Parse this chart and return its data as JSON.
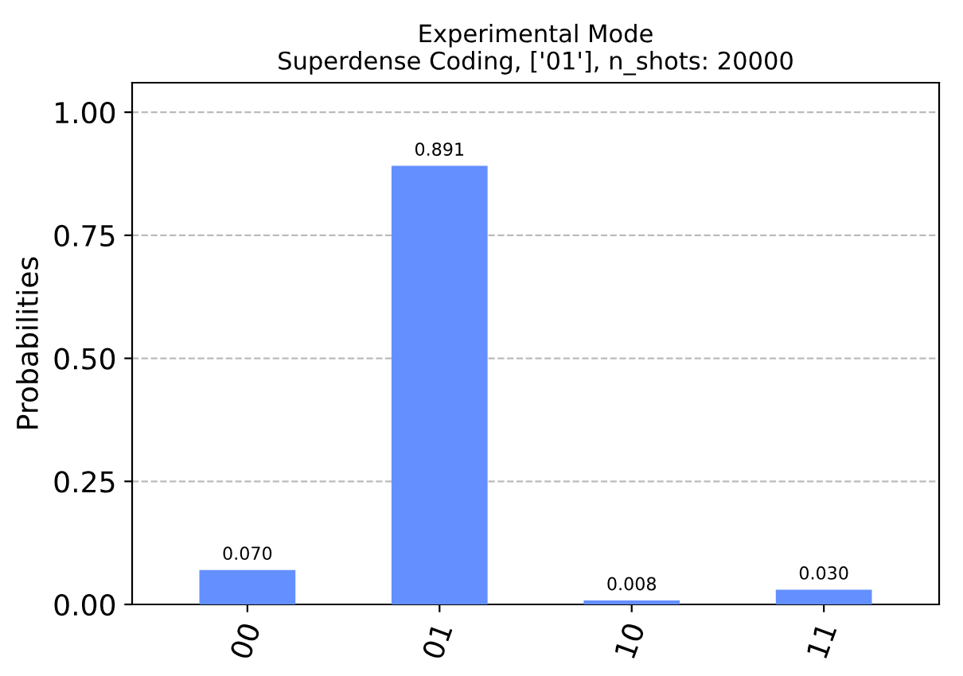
{
  "chart_data": {
    "type": "bar",
    "title": "Experimental Mode\nSuperdense Coding, ['01'], n_shots: 20000",
    "ylabel": "Probabilities",
    "categories": [
      "00",
      "01",
      "10",
      "11"
    ],
    "values": [
      0.07,
      0.891,
      0.008,
      0.03
    ],
    "value_labels": [
      "0.070",
      "0.891",
      "0.008",
      "0.030"
    ],
    "color": "#648fff",
    "ylim": [
      0,
      1.06
    ],
    "yticks": [
      {
        "value": 0,
        "label": "0.00"
      },
      {
        "value": 0.25,
        "label": "0.25"
      },
      {
        "value": 0.5,
        "label": "0.50"
      },
      {
        "value": 0.75,
        "label": "0.75"
      },
      {
        "value": 1.0,
        "label": "1.00"
      }
    ],
    "grid": "y",
    "legend": false
  }
}
